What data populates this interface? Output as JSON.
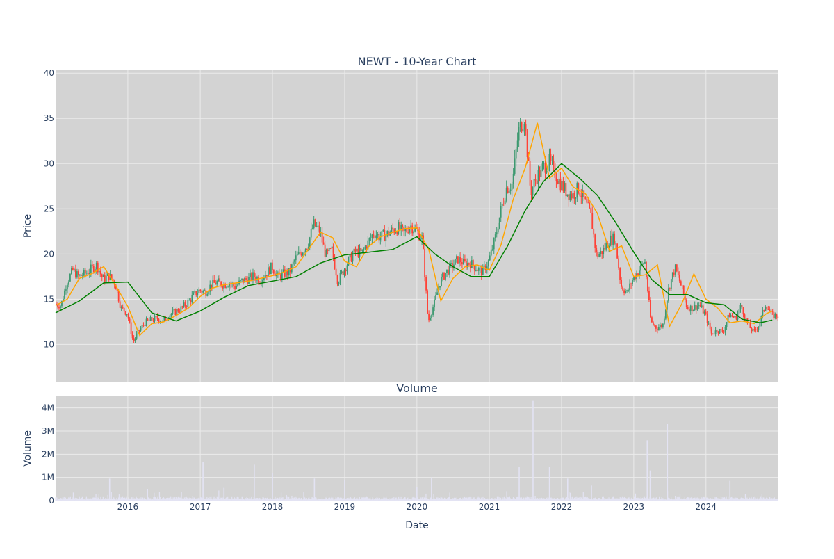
{
  "chart_data": [
    {
      "type": "candlestick",
      "title": "NEWT - 10-Year Chart",
      "xlabel": "",
      "ylabel": "Price",
      "ylim": [
        5.8,
        40.4
      ],
      "xlim": [
        "2015-01-01",
        "2025-01-01"
      ],
      "grid": true,
      "legend": "none",
      "y_ticks": [
        10,
        15,
        20,
        25,
        30,
        35,
        40
      ],
      "x_ticks": [
        "2016",
        "2017",
        "2018",
        "2019",
        "2020",
        "2021",
        "2022",
        "2023",
        "2024"
      ],
      "x_tick_dates": [
        "2016-01-01",
        "2017-01-01",
        "2018-01-01",
        "2019-01-01",
        "2020-01-01",
        "2021-01-01",
        "2022-01-01",
        "2023-01-01",
        "2024-01-01"
      ],
      "candle_colors": {
        "up": "#3d9970",
        "down": "#ff4136"
      },
      "price_series": {
        "name": "",
        "color": "#3d9970",
        "dates": [
          "2015-01-01",
          "2015-02-01",
          "2015-03-01",
          "2015-04-01",
          "2015-05-01",
          "2015-06-01",
          "2015-07-01",
          "2015-08-01",
          "2015-09-01",
          "2015-10-01",
          "2015-11-01",
          "2015-12-01",
          "2016-01-01",
          "2016-02-01",
          "2016-03-01",
          "2016-04-01",
          "2016-05-01",
          "2016-06-01",
          "2016-07-01",
          "2016-08-01",
          "2016-09-01",
          "2016-10-01",
          "2016-11-01",
          "2016-12-01",
          "2017-01-01",
          "2017-02-01",
          "2017-03-01",
          "2017-04-01",
          "2017-05-01",
          "2017-06-01",
          "2017-07-01",
          "2017-08-01",
          "2017-09-01",
          "2017-10-01",
          "2017-11-01",
          "2017-12-01",
          "2018-01-01",
          "2018-02-01",
          "2018-03-01",
          "2018-04-01",
          "2018-05-01",
          "2018-06-01",
          "2018-07-01",
          "2018-08-01",
          "2018-09-01",
          "2018-10-01",
          "2018-11-01",
          "2018-12-01",
          "2019-01-01",
          "2019-02-01",
          "2019-03-01",
          "2019-04-01",
          "2019-05-01",
          "2019-06-01",
          "2019-07-01",
          "2019-08-01",
          "2019-09-01",
          "2019-10-01",
          "2019-11-01",
          "2019-12-01",
          "2020-01-01",
          "2020-02-01",
          "2020-03-01",
          "2020-04-01",
          "2020-05-01",
          "2020-06-01",
          "2020-07-01",
          "2020-08-01",
          "2020-09-01",
          "2020-10-01",
          "2020-11-01",
          "2020-12-01",
          "2021-01-01",
          "2021-02-01",
          "2021-03-01",
          "2021-04-01",
          "2021-05-01",
          "2021-06-01",
          "2021-07-01",
          "2021-08-01",
          "2021-09-01",
          "2021-10-01",
          "2021-11-01",
          "2021-12-01",
          "2022-01-01",
          "2022-02-01",
          "2022-03-01",
          "2022-04-01",
          "2022-05-01",
          "2022-06-01",
          "2022-07-01",
          "2022-08-01",
          "2022-09-01",
          "2022-10-01",
          "2022-11-01",
          "2022-12-01",
          "2023-01-01",
          "2023-02-01",
          "2023-03-01",
          "2023-04-01",
          "2023-05-01",
          "2023-06-01",
          "2023-07-01",
          "2023-08-01",
          "2023-09-01",
          "2023-10-01",
          "2023-11-01",
          "2023-12-01",
          "2024-01-01",
          "2024-02-01",
          "2024-03-01",
          "2024-04-01",
          "2024-05-01",
          "2024-06-01",
          "2024-07-01",
          "2024-08-01",
          "2024-09-01",
          "2024-10-01",
          "2024-11-01",
          "2024-12-01"
        ],
        "close": [
          14.5,
          14.3,
          16.8,
          18.2,
          17.5,
          17.8,
          18.3,
          18.8,
          17.2,
          17.6,
          16.8,
          14.0,
          13.5,
          10.3,
          11.5,
          12.4,
          12.7,
          12.9,
          12.5,
          13.3,
          13.6,
          14.0,
          14.6,
          15.4,
          16.0,
          15.8,
          16.6,
          16.9,
          16.6,
          16.8,
          16.4,
          17.0,
          17.2,
          17.6,
          17.1,
          17.8,
          18.6,
          17.5,
          17.8,
          18.0,
          19.5,
          20.3,
          21.0,
          23.3,
          22.5,
          19.8,
          20.4,
          17.0,
          18.3,
          19.5,
          20.3,
          20.1,
          21.2,
          22.4,
          21.9,
          22.1,
          22.6,
          22.9,
          22.3,
          23.2,
          22.6,
          21.7,
          12.5,
          14.5,
          17.0,
          18.0,
          18.7,
          19.5,
          18.9,
          19.0,
          18.4,
          18.0,
          19.2,
          21.5,
          24.5,
          27.3,
          27.8,
          33.5,
          35.2,
          26.8,
          28.5,
          29.5,
          30.3,
          29.0,
          27.8,
          26.8,
          26.5,
          27.3,
          25.8,
          24.3,
          19.8,
          20.3,
          21.5,
          21.8,
          16.5,
          15.7,
          17.3,
          18.2,
          19.3,
          12.5,
          11.8,
          12.2,
          16.3,
          18.5,
          16.5,
          14.1,
          14.0,
          14.4,
          13.3,
          11.2,
          11.6,
          11.4,
          13.3,
          12.9,
          14.3,
          12.3,
          11.3,
          12.3,
          14.5,
          13.2
        ]
      },
      "moving_averages": [
        {
          "name": "",
          "color": "#ffa500",
          "dates": [
            "2015-01-01",
            "2015-03-01",
            "2015-05-01",
            "2015-07-01",
            "2015-09-01",
            "2015-11-01",
            "2016-01-01",
            "2016-03-01",
            "2016-05-01",
            "2016-07-01",
            "2016-09-01",
            "2016-11-01",
            "2017-01-01",
            "2017-03-01",
            "2017-05-01",
            "2017-07-01",
            "2017-09-01",
            "2017-11-01",
            "2018-01-01",
            "2018-03-01",
            "2018-05-01",
            "2018-07-01",
            "2018-09-01",
            "2018-11-01",
            "2019-01-01",
            "2019-03-01",
            "2019-05-01",
            "2019-07-01",
            "2019-09-01",
            "2019-11-01",
            "2020-01-01",
            "2020-03-01",
            "2020-05-01",
            "2020-07-01",
            "2020-09-01",
            "2020-11-01",
            "2021-01-01",
            "2021-03-01",
            "2021-05-01",
            "2021-07-01",
            "2021-09-01",
            "2021-11-01",
            "2022-01-01",
            "2022-03-01",
            "2022-05-01",
            "2022-07-01",
            "2022-09-01",
            "2022-11-01",
            "2023-01-01",
            "2023-03-01",
            "2023-05-01",
            "2023-07-01",
            "2023-09-01",
            "2023-11-01",
            "2024-01-01",
            "2024-03-01",
            "2024-05-01",
            "2024-07-01",
            "2024-09-01",
            "2024-11-01",
            "2024-12-01"
          ],
          "values": [
            14.3,
            15.0,
            17.3,
            17.8,
            18.6,
            16.5,
            14.2,
            11.0,
            12.3,
            12.5,
            13.2,
            14.0,
            15.3,
            16.2,
            16.6,
            16.8,
            17.0,
            17.3,
            17.6,
            18.0,
            18.6,
            20.5,
            22.4,
            21.8,
            19.2,
            18.6,
            20.8,
            21.9,
            22.4,
            22.8,
            22.9,
            20.5,
            14.8,
            17.3,
            18.6,
            18.8,
            18.2,
            21.0,
            26.0,
            29.5,
            34.5,
            28.4,
            29.5,
            27.4,
            26.7,
            24.5,
            20.3,
            20.9,
            17.5,
            17.7,
            18.8,
            12.0,
            14.5,
            17.8,
            15.0,
            14.0,
            12.4,
            12.6,
            12.3,
            13.4,
            13.7
          ]
        },
        {
          "name": "",
          "color": "#008000",
          "dates": [
            "2015-01-01",
            "2015-05-01",
            "2015-09-01",
            "2016-01-01",
            "2016-05-01",
            "2016-09-01",
            "2017-01-01",
            "2017-05-01",
            "2017-09-01",
            "2018-01-01",
            "2018-05-01",
            "2018-09-01",
            "2019-01-01",
            "2019-05-01",
            "2019-09-01",
            "2020-01-01",
            "2020-04-01",
            "2020-07-01",
            "2020-10-01",
            "2021-01-01",
            "2021-04-01",
            "2021-07-01",
            "2021-10-01",
            "2022-01-01",
            "2022-04-01",
            "2022-07-01",
            "2022-10-01",
            "2023-01-01",
            "2023-04-01",
            "2023-07-01",
            "2023-10-01",
            "2024-01-01",
            "2024-04-01",
            "2024-07-01",
            "2024-10-01",
            "2024-12-01"
          ],
          "values": [
            13.5,
            14.8,
            16.8,
            16.9,
            13.5,
            12.6,
            13.7,
            15.2,
            16.5,
            17.0,
            17.5,
            19.0,
            19.9,
            20.2,
            20.5,
            21.9,
            20.0,
            18.6,
            17.5,
            17.5,
            20.8,
            24.8,
            28.0,
            30.0,
            28.4,
            26.5,
            23.5,
            20.2,
            17.2,
            15.5,
            15.5,
            14.6,
            14.4,
            12.8,
            12.4,
            12.7
          ]
        }
      ]
    },
    {
      "type": "bar",
      "title": "Volume",
      "xlabel": "Date",
      "ylabel": "Volume",
      "ylim": [
        0,
        4.5
      ],
      "y_unit": "M",
      "y_ticks": [
        0,
        1,
        2,
        3,
        4
      ],
      "y_tick_labels": [
        "0",
        "1M",
        "2M",
        "3M",
        "4M"
      ],
      "x_ticks": [
        "2016",
        "2017",
        "2018",
        "2019",
        "2020",
        "2021",
        "2022",
        "2023",
        "2024"
      ],
      "grid": true,
      "legend": "none",
      "color": "#e3e3f3",
      "series": [
        {
          "name": "",
          "dates": [
            "2015-04-01",
            "2015-10-01",
            "2017-01-15",
            "2017-05-01",
            "2017-10-01",
            "2018-01-01",
            "2018-08-01",
            "2019-01-01",
            "2020-01-01",
            "2020-03-15",
            "2021-06-01",
            "2021-08-10",
            "2021-11-01",
            "2022-02-01",
            "2022-06-01",
            "2023-03-10",
            "2023-03-25",
            "2023-06-20",
            "2024-05-01"
          ],
          "values": [
            0.35,
            0.95,
            1.65,
            0.55,
            1.55,
            1.2,
            0.95,
            0.9,
            0.6,
            1.0,
            1.45,
            4.3,
            1.45,
            0.95,
            0.65,
            2.6,
            1.3,
            3.3,
            0.85
          ]
        }
      ]
    }
  ]
}
